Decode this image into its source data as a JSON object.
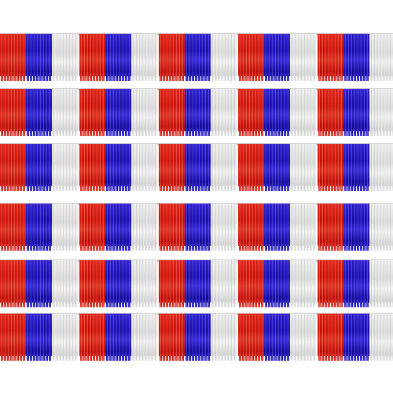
{
  "colors": {
    "red": "#d31408",
    "blue": "#1d0fb8",
    "white": "#ececec",
    "background": "#ffffff"
  },
  "garland_count": 6,
  "color_sequence": [
    "red",
    "blue",
    "white"
  ],
  "sections_per_row": 5
}
